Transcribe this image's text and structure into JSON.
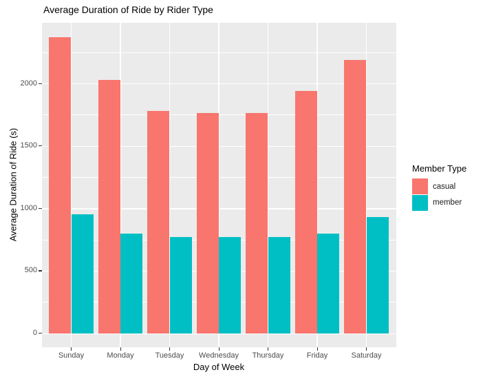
{
  "chart_data": {
    "type": "bar",
    "title": "Average Duration of Ride by Rider Type",
    "xlabel": "Day of Week",
    "ylabel": "Average Duration of Ride (s)",
    "legend_title": "Member Type",
    "legend_position": "right",
    "categories": [
      "Sunday",
      "Monday",
      "Tuesday",
      "Wednesday",
      "Thursday",
      "Friday",
      "Saturday"
    ],
    "series": [
      {
        "name": "casual",
        "color": "#F8766D",
        "values": [
          2370,
          2030,
          1780,
          1765,
          1765,
          1940,
          2190
        ]
      },
      {
        "name": "member",
        "color": "#00BFC4",
        "values": [
          950,
          800,
          770,
          770,
          770,
          800,
          930
        ]
      }
    ],
    "ylim": [
      0,
      2490
    ],
    "yticks_major": [
      0,
      500,
      1000,
      1500,
      2000
    ],
    "yticks_minor": [
      250,
      750,
      1250,
      1750,
      2250
    ],
    "grid": true,
    "bar_mode": "grouped",
    "panel_background": "#EBEBEB",
    "grid_color": "#FFFFFF",
    "axis_text_color": "#4D4D4D",
    "title_color": "#000000"
  }
}
